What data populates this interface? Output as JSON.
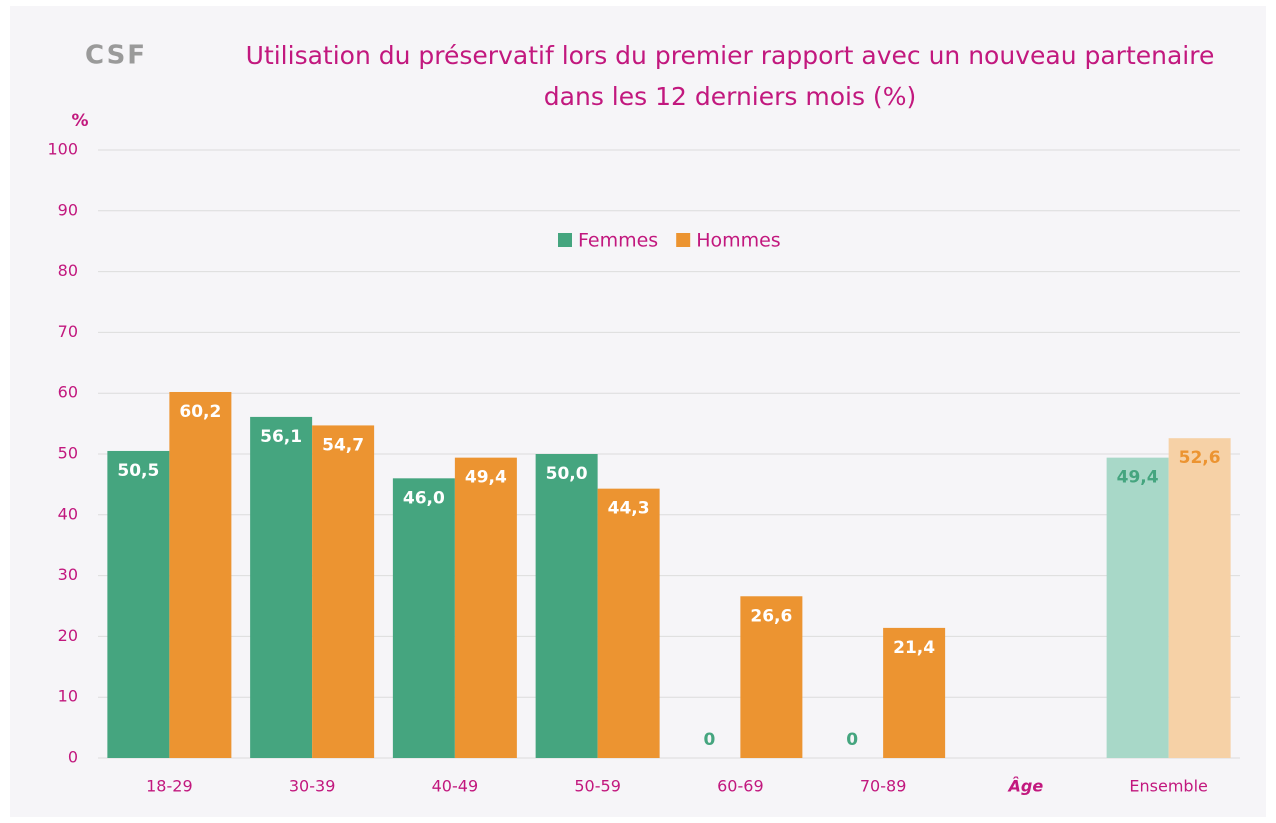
{
  "chart_data": {
    "type": "bar",
    "logo": "CSF",
    "title": [
      "Utilisation du préservatif lors du premier rapport avec un nouveau partenaire",
      "dans les 12 derniers mois (%)"
    ],
    "y_label": "%",
    "x_label": "Âge",
    "categories": [
      "18-29",
      "30-39",
      "40-49",
      "50-59",
      "60-69",
      "70-89",
      null,
      "Ensemble"
    ],
    "series": [
      {
        "name": "Femmes",
        "color": "#45a57f",
        "colors": [
          "#45a57f",
          "#45a57f",
          "#45a57f",
          "#45a57f",
          "#45a57f",
          "#45a57f",
          null,
          "#a8d8c8"
        ],
        "values": [
          50.5,
          56.1,
          46.0,
          50.0,
          0,
          0,
          null,
          49.4
        ],
        "value_labels": [
          "50,5",
          "56,1",
          "46,0",
          "50,0",
          "0",
          "0",
          null,
          "49,4"
        ]
      },
      {
        "name": "Hommes",
        "color": "#ec9431",
        "colors": [
          "#ec9431",
          "#ec9431",
          "#ec9431",
          "#ec9431",
          "#ec9431",
          "#ec9431",
          null,
          "#f6d1a6"
        ],
        "values": [
          60.2,
          54.7,
          49.4,
          44.3,
          26.6,
          21.4,
          null,
          52.6
        ],
        "value_labels": [
          "60,2",
          "54,7",
          "49,4",
          "44,3",
          "26,6",
          "21,4",
          null,
          "52,6"
        ]
      }
    ],
    "ylim": [
      0,
      100
    ],
    "yticks": [
      0,
      10,
      20,
      30,
      40,
      50,
      60,
      70,
      80,
      90,
      100
    ],
    "grid": true,
    "legend": "top"
  }
}
